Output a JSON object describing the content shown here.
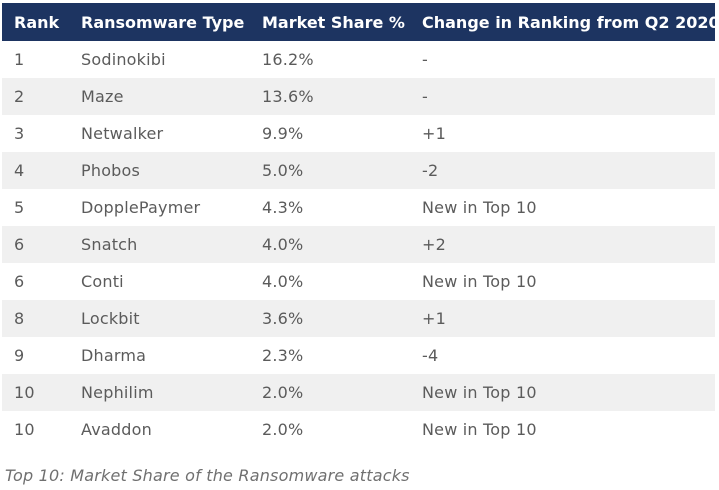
{
  "table": {
    "headers": {
      "rank": "Rank",
      "type": "Ransomware Type",
      "share": "Market Share %",
      "change": "Change in Ranking from Q2 2020"
    },
    "rows": [
      {
        "rank": "1",
        "type": "Sodinokibi",
        "share": "16.2%",
        "change": "-"
      },
      {
        "rank": "2",
        "type": "Maze",
        "share": "13.6%",
        "change": "-"
      },
      {
        "rank": "3",
        "type": "Netwalker",
        "share": "9.9%",
        "change": "+1"
      },
      {
        "rank": "4",
        "type": "Phobos",
        "share": "5.0%",
        "change": "-2"
      },
      {
        "rank": "5",
        "type": "DopplePaymer",
        "share": "4.3%",
        "change": "New in Top 10"
      },
      {
        "rank": "6",
        "type": "Snatch",
        "share": "4.0%",
        "change": "+2"
      },
      {
        "rank": "6",
        "type": "Conti",
        "share": "4.0%",
        "change": "New in Top 10"
      },
      {
        "rank": "8",
        "type": "Lockbit",
        "share": "3.6%",
        "change": "+1"
      },
      {
        "rank": "9",
        "type": "Dharma",
        "share": "2.3%",
        "change": "-4"
      },
      {
        "rank": "10",
        "type": "Nephilim",
        "share": "2.0%",
        "change": "New in Top 10"
      },
      {
        "rank": "10",
        "type": "Avaddon",
        "share": "2.0%",
        "change": "New in Top 10"
      }
    ]
  },
  "caption": "Top 10: Market Share of the Ransomware attacks",
  "colors": {
    "header_background": "#1d3461",
    "header_text": "#ffffff",
    "striped_row": "#f0f0f0",
    "body_text": "#5b5b5b"
  }
}
